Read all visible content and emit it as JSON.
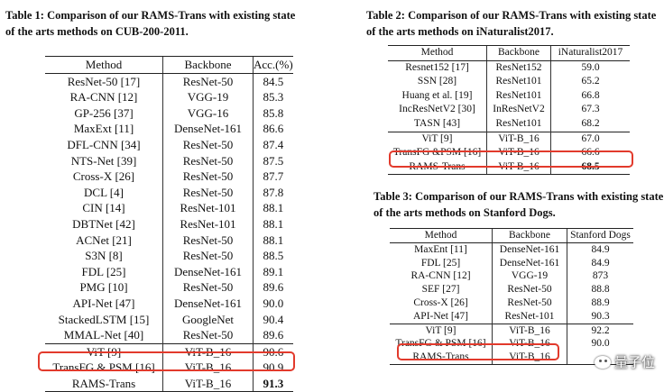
{
  "table1": {
    "caption_line1": "Table 1: Comparison of our RAMS-Trans with existing state",
    "caption_line2": "of the arts methods on CUB-200-2011.",
    "headers": [
      "Method",
      "Backbone",
      "Acc.(%)"
    ],
    "rows": [
      [
        "ResNet-50 [17]",
        "ResNet-50",
        "84.5"
      ],
      [
        "RA-CNN [12]",
        "VGG-19",
        "85.3"
      ],
      [
        "GP-256 [37]",
        "VGG-16",
        "85.8"
      ],
      [
        "MaxExt [11]",
        "DenseNet-161",
        "86.6"
      ],
      [
        "DFL-CNN [34]",
        "ResNet-50",
        "87.4"
      ],
      [
        "NTS-Net [39]",
        "ResNet-50",
        "87.5"
      ],
      [
        "Cross-X [26]",
        "ResNet-50",
        "87.7"
      ],
      [
        "DCL [4]",
        "ResNet-50",
        "87.8"
      ],
      [
        "CIN [14]",
        "ResNet-101",
        "88.1"
      ],
      [
        "DBTNet [42]",
        "ResNet-101",
        "88.1"
      ],
      [
        "ACNet [21]",
        "ResNet-50",
        "88.1"
      ],
      [
        "S3N [8]",
        "ResNet-50",
        "88.5"
      ],
      [
        "FDL [25]",
        "DenseNet-161",
        "89.1"
      ],
      [
        "PMG [10]",
        "ResNet-50",
        "89.6"
      ],
      [
        "API-Net [47]",
        "DenseNet-161",
        "90.0"
      ],
      [
        "StackedLSTM [15]",
        "GoogleNet",
        "90.4"
      ],
      [
        "MMAL-Net [40]",
        "ResNet-50",
        "89.6"
      ],
      [
        "ViT [9]",
        "ViT-B_16",
        "90.6"
      ],
      [
        "TransFG & PSM [16]",
        "ViT-B_16",
        "90.9"
      ],
      [
        "RAMS-Trans",
        "ViT-B_16",
        "91.3"
      ]
    ]
  },
  "table2": {
    "caption_line1": "Table 2: Comparison of our RAMS-Trans with existing state",
    "caption_line2": "of the arts methods on iNaturalist2017.",
    "headers": [
      "Method",
      "Backbone",
      "iNaturalist2017"
    ],
    "rows": [
      [
        "Resnet152 [17]",
        "ResNet152",
        "59.0"
      ],
      [
        "SSN [28]",
        "ResNet101",
        "65.2"
      ],
      [
        "Huang et al. [19]",
        "ResNet101",
        "66.8"
      ],
      [
        "IncResNetV2 [30]",
        "InResNetV2",
        "67.3"
      ],
      [
        "TASN [43]",
        "ResNet101",
        "68.2"
      ],
      [
        "ViT [9]",
        "ViT-B_16",
        "67.0"
      ],
      [
        "TransFG &PSM [16]",
        "ViT-B_16",
        "66.6"
      ],
      [
        "RAMS-Trans",
        "ViT-B_16",
        "68.5"
      ]
    ]
  },
  "table3": {
    "caption_line1": "Table 3: Comparison of our RAMS-Trans with existing state",
    "caption_line2": "of the arts methods on Stanford Dogs.",
    "headers": [
      "Method",
      "Backbone",
      "Stanford Dogs"
    ],
    "rows": [
      [
        "MaxEnt [11]",
        "DenseNet-161",
        "84.9"
      ],
      [
        "FDL [25]",
        "DenseNet-161",
        "84.9"
      ],
      [
        "RA-CNN [12]",
        "VGG-19",
        "873"
      ],
      [
        "SEF [27]",
        "ResNet-50",
        "88.8"
      ],
      [
        "Cross-X [26]",
        "ResNet-50",
        "88.9"
      ],
      [
        "API-Net [47]",
        "ResNet-101",
        "90.3"
      ],
      [
        "ViT [9]",
        "ViT-B_16",
        "92.2"
      ],
      [
        "TransFG & PSM [16]",
        "ViT-B_16",
        "90.0"
      ],
      [
        "RAMS-Trans",
        "ViT-B_16",
        ""
      ]
    ]
  },
  "watermark": {
    "text": "量子位",
    "icon": "wechat-icon"
  },
  "colors": {
    "highlight_box": "#e23a2c"
  }
}
